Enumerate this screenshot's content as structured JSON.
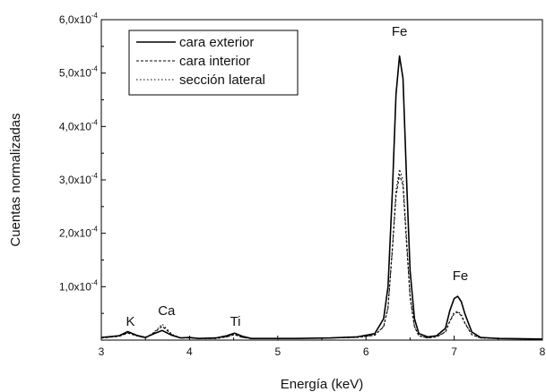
{
  "chart_data": {
    "type": "line",
    "xlabel": "Energía (keV)",
    "ylabel": "Cuentas normalizadas",
    "xlim": [
      3,
      8
    ],
    "ylim": [
      0,
      0.0006
    ],
    "x_ticks": [
      {
        "value": 3,
        "label": "3"
      },
      {
        "value": 4,
        "label": "4"
      },
      {
        "value": 5,
        "label": "5"
      },
      {
        "value": 6,
        "label": "6"
      },
      {
        "value": 7,
        "label": "7"
      },
      {
        "value": 8,
        "label": "8"
      }
    ],
    "y_ticks": [
      {
        "value": 0.0001,
        "mantissa": "1,0x10",
        "exp": "-4"
      },
      {
        "value": 0.0002,
        "mantissa": "2,0x10",
        "exp": "-4"
      },
      {
        "value": 0.0003,
        "mantissa": "3,0x10",
        "exp": "-4"
      },
      {
        "value": 0.0004,
        "mantissa": "4,0x10",
        "exp": "-4"
      },
      {
        "value": 0.0005,
        "mantissa": "5,0x10",
        "exp": "-4"
      },
      {
        "value": 0.0006,
        "mantissa": "6,0x10",
        "exp": "-4"
      }
    ],
    "legend_position": "top-left",
    "series": [
      {
        "name": "cara exterior",
        "style": "solid",
        "x": [
          3.0,
          3.2,
          3.3,
          3.4,
          3.5,
          3.6,
          3.69,
          3.8,
          3.9,
          4.0,
          4.1,
          4.3,
          4.42,
          4.51,
          4.6,
          4.7,
          4.9,
          5.2,
          5.6,
          5.9,
          6.1,
          6.2,
          6.25,
          6.3,
          6.34,
          6.38,
          6.42,
          6.46,
          6.5,
          6.55,
          6.6,
          6.7,
          6.8,
          6.9,
          6.95,
          7.0,
          7.04,
          7.08,
          7.12,
          7.2,
          7.3,
          7.5,
          8.0
        ],
        "y": [
          5e-06,
          8e-06,
          1.6e-05,
          9e-06,
          5e-06,
          1.2e-05,
          1.8e-05,
          9e-06,
          4e-06,
          5e-06,
          3e-06,
          4e-06,
          8e-06,
          1.3e-05,
          7e-06,
          3e-06,
          3e-06,
          3e-06,
          4e-06,
          6e-06,
          1.2e-05,
          4e-05,
          0.0001,
          0.00028,
          0.00046,
          0.000532,
          0.00049,
          0.0003,
          0.00013,
          4e-05,
          1.2e-05,
          6e-06,
          8e-06,
          2.2e-05,
          5.5e-05,
          7.8e-05,
          8.2e-05,
          7.2e-05,
          5e-05,
          1.5e-05,
          5e-06,
          3e-06,
          2e-06
        ]
      },
      {
        "name": "cara interior",
        "style": "dashed",
        "x": [
          3.0,
          3.2,
          3.3,
          3.4,
          3.5,
          3.6,
          3.69,
          3.8,
          3.9,
          4.0,
          4.1,
          4.3,
          4.42,
          4.51,
          4.6,
          4.7,
          4.9,
          5.2,
          5.6,
          5.9,
          6.1,
          6.2,
          6.25,
          6.3,
          6.34,
          6.38,
          6.42,
          6.46,
          6.5,
          6.55,
          6.6,
          6.7,
          6.8,
          6.9,
          6.95,
          7.0,
          7.04,
          7.08,
          7.12,
          7.2,
          7.3,
          7.5,
          8.0
        ],
        "y": [
          4e-06,
          7e-06,
          1.3e-05,
          8e-06,
          4e-06,
          1.4e-05,
          2.6e-05,
          1e-05,
          4e-06,
          4e-06,
          3e-06,
          3e-06,
          6e-06,
          1e-05,
          5e-06,
          3e-06,
          3e-06,
          3e-06,
          4e-06,
          5e-06,
          9e-06,
          2.5e-05,
          6e-05,
          0.00017,
          0.00027,
          0.00031,
          0.00029,
          0.00018,
          8e-05,
          2.5e-05,
          8e-06,
          4e-06,
          6e-06,
          1.5e-05,
          3.5e-05,
          5e-05,
          5.2e-05,
          4.6e-05,
          3.2e-05,
          1e-05,
          4e-06,
          3e-06,
          2e-06
        ]
      },
      {
        "name": "sección lateral",
        "style": "dotted",
        "x": [
          3.0,
          3.2,
          3.3,
          3.4,
          3.5,
          3.6,
          3.69,
          3.8,
          3.9,
          4.0,
          4.1,
          4.3,
          4.42,
          4.51,
          4.6,
          4.7,
          4.9,
          5.2,
          5.6,
          5.9,
          6.1,
          6.2,
          6.25,
          6.3,
          6.34,
          6.38,
          6.42,
          6.46,
          6.5,
          6.55,
          6.6,
          6.7,
          6.8,
          6.9,
          6.95,
          7.0,
          7.04,
          7.08,
          7.12,
          7.2,
          7.3,
          7.5,
          8.0
        ],
        "y": [
          4e-06,
          7e-06,
          1.4e-05,
          8e-06,
          4e-06,
          1.5e-05,
          3e-05,
          1.1e-05,
          4e-06,
          4e-06,
          3e-06,
          3e-06,
          6e-06,
          1.1e-05,
          5e-06,
          3e-06,
          3e-06,
          3e-06,
          4e-06,
          5e-06,
          9e-06,
          2.6e-05,
          6.2e-05,
          0.000175,
          0.00028,
          0.00032,
          0.0003,
          0.00019,
          8.5e-05,
          2.6e-05,
          8e-06,
          4e-06,
          6e-06,
          1.6e-05,
          3.6e-05,
          5.2e-05,
          5.4e-05,
          4.8e-05,
          3.3e-05,
          1e-05,
          4e-06,
          3e-06,
          2e-06
        ]
      }
    ],
    "annotations": [
      {
        "text": "K",
        "x": 3.33,
        "y": 2.7e-05
      },
      {
        "text": "Ca",
        "x": 3.74,
        "y": 4.7e-05
      },
      {
        "text": "Ti",
        "x": 4.52,
        "y": 2.7e-05
      },
      {
        "text": "Fe",
        "x": 6.38,
        "y": 0.00057
      },
      {
        "text": "Fe",
        "x": 7.07,
        "y": 0.000112
      }
    ]
  }
}
